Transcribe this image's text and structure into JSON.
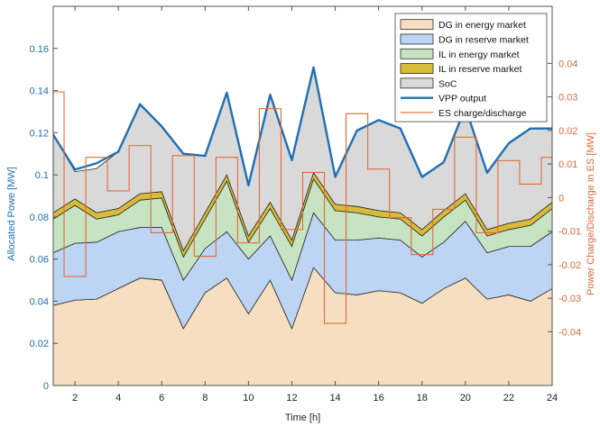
{
  "chart_data": {
    "type": "area",
    "xlabel": "Time [h]",
    "ylabel": "Allocated Powe [MW]",
    "ylabel_right": "Power Charge/Discharge in ES [MW]",
    "x": [
      1,
      2,
      3,
      4,
      5,
      6,
      7,
      8,
      9,
      10,
      11,
      12,
      13,
      14,
      15,
      16,
      17,
      18,
      19,
      20,
      21,
      22,
      23,
      24
    ],
    "xlim": [
      1,
      24
    ],
    "xticks": [
      "2",
      "4",
      "6",
      "8",
      "10",
      "12",
      "14",
      "16",
      "18",
      "20",
      "22",
      "24"
    ],
    "ylim": [
      0,
      0.18
    ],
    "yticks": [
      "0",
      "0.02",
      "0.04",
      "0.06",
      "0.08",
      "0.1",
      "0.12",
      "0.14",
      "0.16"
    ],
    "ylim_right": [
      -0.056,
      0.057
    ],
    "yticks_right": [
      "-0.04",
      "-0.03",
      "-0.02",
      "-0.01",
      "0",
      "0.01",
      "0.02",
      "0.03",
      "0.04"
    ],
    "stacked_series": [
      {
        "name": "DG in energy market",
        "color": "#f5dfc0",
        "values": [
          0.038,
          0.0405,
          0.041,
          0.046,
          0.051,
          0.05,
          0.027,
          0.044,
          0.051,
          0.034,
          0.05,
          0.027,
          0.056,
          0.044,
          0.043,
          0.045,
          0.044,
          0.039,
          0.046,
          0.051,
          0.041,
          0.043,
          0.04,
          0.046
        ]
      },
      {
        "name": "DG in reserve market",
        "color": "#bdd4f3",
        "values": [
          0.025,
          0.027,
          0.027,
          0.027,
          0.024,
          0.025,
          0.023,
          0.021,
          0.022,
          0.026,
          0.021,
          0.023,
          0.026,
          0.025,
          0.026,
          0.025,
          0.025,
          0.022,
          0.022,
          0.027,
          0.022,
          0.023,
          0.026,
          0.027
        ]
      },
      {
        "name": "IL in energy market",
        "color": "#c6e4c2",
        "values": [
          0.016,
          0.018,
          0.011,
          0.008,
          0.013,
          0.014,
          0.011,
          0.014,
          0.024,
          0.008,
          0.013,
          0.016,
          0.016,
          0.014,
          0.013,
          0.01,
          0.01,
          0.01,
          0.012,
          0.01,
          0.008,
          0.008,
          0.01,
          0.011
        ]
      },
      {
        "name": "IL in reserve market",
        "color": "#d9bb3a",
        "values": [
          0.003,
          0.003,
          0.003,
          0.003,
          0.003,
          0.003,
          0.003,
          0.003,
          0.003,
          0.003,
          0.003,
          0.003,
          0.003,
          0.003,
          0.003,
          0.003,
          0.003,
          0.003,
          0.003,
          0.003,
          0.003,
          0.003,
          0.003,
          0.003
        ]
      },
      {
        "name": "SoC",
        "color": "#d9d9d9",
        "values": [
          0.037,
          0.013,
          0.021,
          0.027,
          0.042,
          0.031,
          0.046,
          0.027,
          0.039,
          0.024,
          0.051,
          0.038,
          0.05,
          0.013,
          0.036,
          0.043,
          0.04,
          0.025,
          0.023,
          0.041,
          0.027,
          0.038,
          0.043,
          0.035
        ]
      }
    ],
    "line_series": [
      {
        "name": "VPP output",
        "color": "#1f6fb5",
        "values": [
          0.119,
          0.1025,
          0.1055,
          0.111,
          0.1335,
          0.123,
          0.11,
          0.109,
          0.139,
          0.095,
          0.138,
          0.107,
          0.151,
          0.099,
          0.121,
          0.126,
          0.122,
          0.099,
          0.106,
          0.132,
          0.101,
          0.115,
          0.122,
          0.122
        ]
      },
      {
        "name": "ES charge/discharge",
        "color": "#e36a3a",
        "axis": "right",
        "step": true,
        "values": [
          0.0315,
          -0.0235,
          0.012,
          0.002,
          0.0155,
          -0.0105,
          0.0125,
          -0.0175,
          0.012,
          -0.0135,
          0.0265,
          -0.0095,
          0.0075,
          -0.0375,
          0.025,
          0.0085,
          -0.006,
          -0.017,
          -0.0035,
          0.018,
          -0.0105,
          0.011,
          0.004,
          0.012
        ]
      }
    ],
    "legend_position": "top-right",
    "grid": false
  }
}
